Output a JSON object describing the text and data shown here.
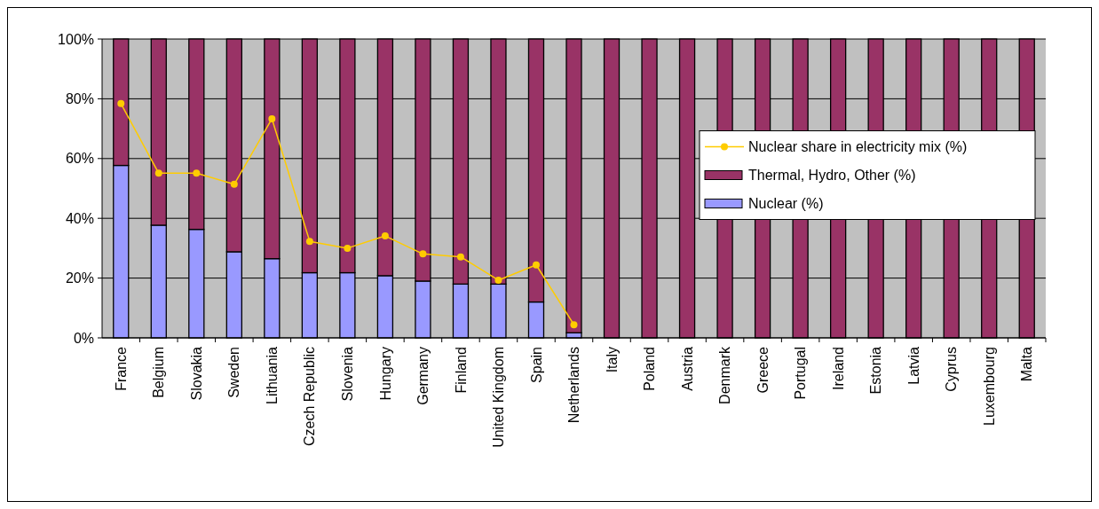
{
  "chart_data": {
    "type": "bar",
    "stacked": true,
    "categories": [
      "France",
      "Belgium",
      "Slovakia",
      "Sweden",
      "Lithuania",
      "Czech Republic",
      "Slovenia",
      "Hungary",
      "Germany",
      "Finland",
      "United Kingdom",
      "Spain",
      "Netherlands",
      "Italy",
      "Poland",
      "Austria",
      "Denmark",
      "Greece",
      "Portugal",
      "Ireland",
      "Estonia",
      "Latvia",
      "Cyprus",
      "Luxembourg",
      "Malta"
    ],
    "series": [
      {
        "name": "Nuclear (%)",
        "color": "#9999ff",
        "values": [
          57.7,
          37.7,
          36.3,
          28.8,
          26.5,
          21.8,
          21.8,
          20.8,
          19.0,
          18.0,
          18.0,
          12.0,
          1.7,
          0,
          0,
          0,
          0,
          0,
          0,
          0,
          0,
          0,
          0,
          0,
          0
        ]
      },
      {
        "name": "Thermal, Hydro, Other (%)",
        "color": "#993366",
        "values": [
          42.3,
          62.3,
          63.7,
          71.2,
          73.5,
          78.2,
          78.2,
          79.2,
          81.0,
          82.0,
          82.0,
          88.0,
          98.3,
          100,
          100,
          100,
          100,
          100,
          100,
          100,
          100,
          100,
          100,
          100,
          100
        ]
      },
      {
        "name": "Nuclear share in electricity mix (%)",
        "type": "line",
        "color": "#ffcc00",
        "marker": "circle",
        "values": [
          78.4,
          55.1,
          55.1,
          51.4,
          73.3,
          32.3,
          30.0,
          34.1,
          28.1,
          27.1,
          19.3,
          24.4,
          4.4,
          null,
          null,
          null,
          null,
          null,
          null,
          null,
          null,
          null,
          null,
          null,
          null
        ]
      }
    ],
    "ylim": [
      0,
      100
    ],
    "yticks": [
      {
        "value": 0,
        "label": "0%"
      },
      {
        "value": 20,
        "label": "20%"
      },
      {
        "value": 40,
        "label": "40%"
      },
      {
        "value": 60,
        "label": "60%"
      },
      {
        "value": 80,
        "label": "80%"
      },
      {
        "value": 100,
        "label": "100%"
      }
    ],
    "grid": "y",
    "legend": "right"
  }
}
